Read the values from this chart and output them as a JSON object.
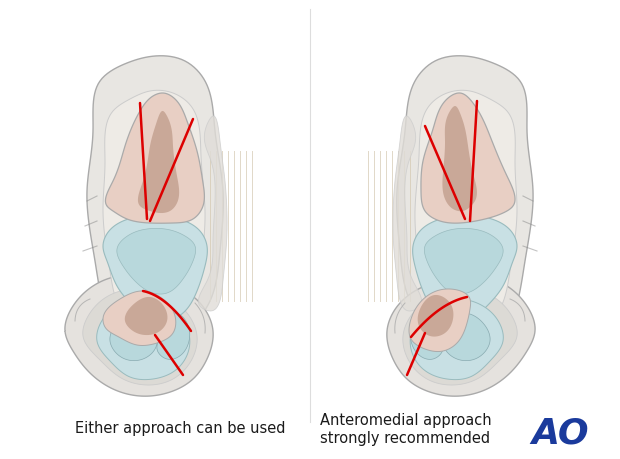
{
  "bg_color": "#ffffff",
  "left_label": "Either approach can be used",
  "right_label_line1": "Anteromedial approach",
  "right_label_line2": "strongly recommended",
  "ao_text": "AO",
  "ao_color": "#1a3a9c",
  "label_fontsize": 10.5,
  "ao_fontsize": 26,
  "fig_width": 6.2,
  "fig_height": 4.59,
  "dpi": 100,
  "bone_pink_light": "#e8cfc4",
  "bone_pink_mid": "#c9a898",
  "bone_pink_dark": "#b8927e",
  "cartilage_blue": "#b8d8dc",
  "cartilage_blue2": "#c8e0e4",
  "soft_tissue": "#e8e6e2",
  "soft_tissue2": "#d8d5d0",
  "outline_dark": "#888888",
  "outline_mid": "#aaaaaa",
  "outline_light": "#cccccc",
  "fracture_red": "#dd0000",
  "stripe_color": "#d4c8b0",
  "white": "#ffffff"
}
